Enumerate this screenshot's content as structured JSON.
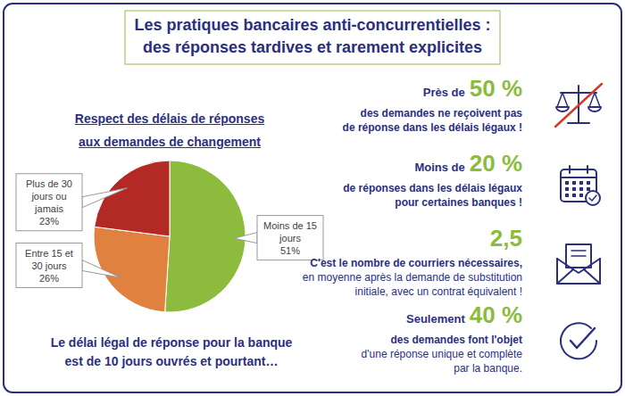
{
  "header": {
    "title_lines": [
      "Les pratiques bancaires anti-concurrentielles :",
      "des réponses tardives et rarement explicites"
    ]
  },
  "chart_data": {
    "type": "pie",
    "title": "Respect des délais de réponses aux demandes de changement",
    "categories": [
      "Moins de 15 jours",
      "Entre 15 et 30 jours",
      "Plus de 30 jours ou jamais"
    ],
    "values": [
      51,
      26,
      23
    ],
    "value_labels": [
      "51%",
      "26%",
      "23%"
    ],
    "colors": [
      "#8cbb3e",
      "#e0813f",
      "#b32a25"
    ],
    "data_labels": true
  },
  "note": {
    "lines": [
      "Le délai légal de réponse pour la banque",
      "est de 10 jours ouvrés et pourtant…"
    ]
  },
  "stats": [
    {
      "prefix": "Près de",
      "value": "50 %",
      "bold_lines": [
        "des demandes ne reçoivent pas",
        "de réponse dans les délais légaux !"
      ]
    },
    {
      "prefix": "Moins de",
      "value": "20 %",
      "bold_lines": [
        "de réponses dans les délais légaux",
        "pour certaines banques !"
      ]
    },
    {
      "value": "2,5",
      "bold_lines": [
        "C'est le nombre de courriers nécessaires,"
      ],
      "lines": [
        "en moyenne après la demande de substitution",
        "initiale, avec un contrat équivalent !"
      ]
    },
    {
      "prefix": "Seulement",
      "value": "40 %",
      "bold_lines": [
        "des demandes font l'objet"
      ],
      "lines": [
        "d'une réponse unique et complète",
        "par la banque."
      ]
    }
  ]
}
